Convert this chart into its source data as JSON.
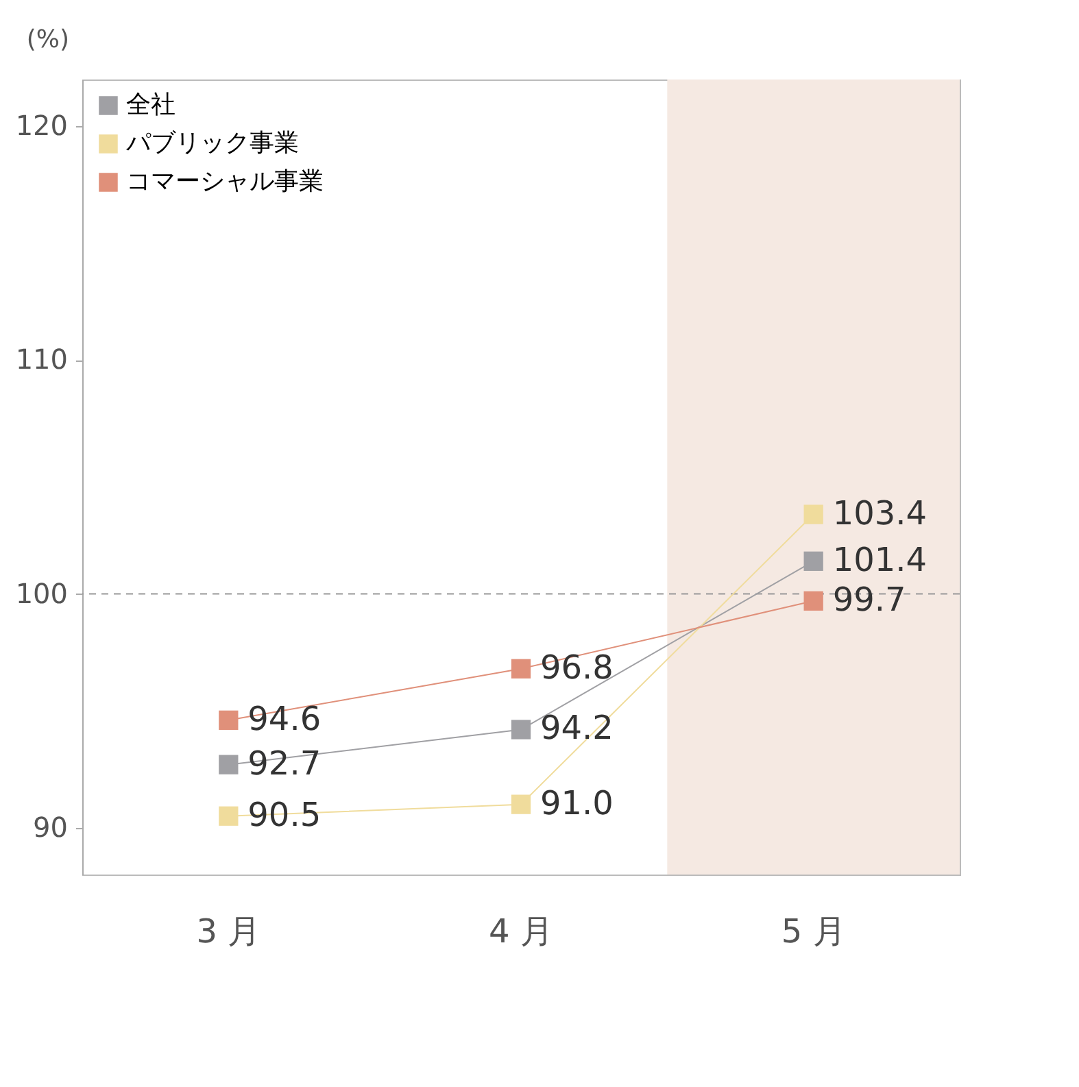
{
  "chart_data": {
    "type": "line",
    "ylabel": "(%)",
    "categories": [
      "3 月",
      "4 月",
      "5 月"
    ],
    "series": [
      {
        "name": "全社",
        "color": "#a0a0a4",
        "values": [
          92.7,
          94.2,
          101.4
        ],
        "value_labels": [
          "92.7",
          "94.2",
          "101.4"
        ]
      },
      {
        "name": "パブリック事業",
        "color": "#f0dc9c",
        "values": [
          90.5,
          91.0,
          103.4
        ],
        "value_labels": [
          "90.5",
          "91.0",
          "103.4"
        ]
      },
      {
        "name": "コマーシャル事業",
        "color": "#e0907a",
        "values": [
          94.6,
          96.8,
          99.7
        ],
        "value_labels": [
          "94.6",
          "96.8",
          "99.7"
        ]
      }
    ],
    "ylim": [
      88,
      122
    ],
    "yticks": [
      90,
      100,
      110,
      120
    ],
    "marker": "square",
    "legend": "top left",
    "grid": false,
    "ref_lines": [
      {
        "axis": "y",
        "value": 100,
        "line_style": "dashed",
        "color": "#999999"
      }
    ],
    "bands": [
      {
        "axis": "x",
        "from": "5 月",
        "to": "5 月",
        "color": "#f5e9e2"
      }
    ]
  }
}
